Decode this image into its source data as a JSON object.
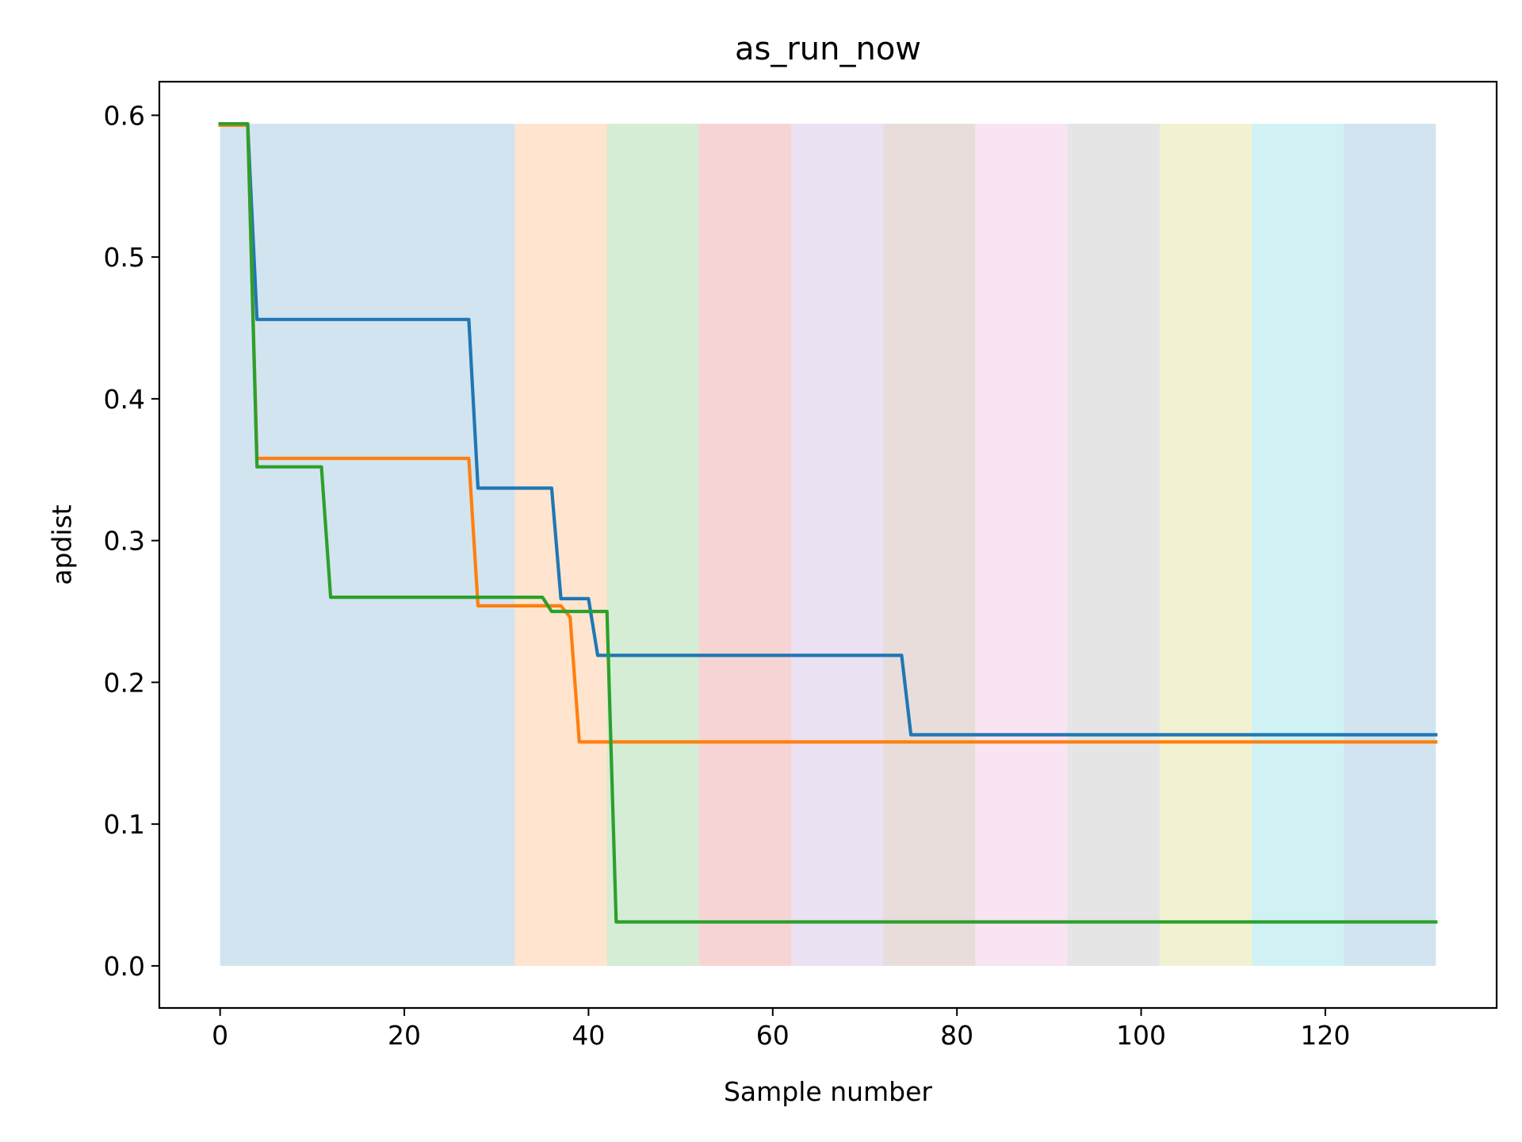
{
  "chart_data": {
    "type": "line",
    "title": "as_run_now",
    "xlabel": "Sample number",
    "ylabel": "apdist",
    "xlim": [
      -6.6,
      138.6
    ],
    "ylim": [
      -0.0297,
      0.6237
    ],
    "xticks": [
      0,
      20,
      40,
      60,
      80,
      100,
      120
    ],
    "yticks": [
      0.0,
      0.1,
      0.2,
      0.3,
      0.4,
      0.5,
      0.6
    ],
    "ytick_labels": [
      "0.0",
      "0.1",
      "0.2",
      "0.3",
      "0.4",
      "0.5",
      "0.6"
    ],
    "grid": false,
    "legend": "none",
    "bands": {
      "ymin": 0.0,
      "ymax": 0.594,
      "opacity": 0.2,
      "intervals": [
        {
          "x0": 0,
          "x1": 32,
          "color": "#1f77b4"
        },
        {
          "x0": 32,
          "x1": 42,
          "color": "#ff7f0e"
        },
        {
          "x0": 42,
          "x1": 52,
          "color": "#2ca02c"
        },
        {
          "x0": 52,
          "x1": 62,
          "color": "#d62728"
        },
        {
          "x0": 62,
          "x1": 72,
          "color": "#9467bd"
        },
        {
          "x0": 72,
          "x1": 82,
          "color": "#8c564b"
        },
        {
          "x0": 82,
          "x1": 92,
          "color": "#e377c2"
        },
        {
          "x0": 92,
          "x1": 102,
          "color": "#7f7f7f"
        },
        {
          "x0": 102,
          "x1": 112,
          "color": "#bcbd22"
        },
        {
          "x0": 112,
          "x1": 122,
          "color": "#17becf"
        },
        {
          "x0": 122,
          "x1": 132,
          "color": "#1f77b4"
        }
      ]
    },
    "series": [
      {
        "color": "#1f77b4",
        "x": [
          0,
          3,
          4,
          27,
          28,
          36,
          37,
          40,
          41,
          74,
          75,
          132
        ],
        "y": [
          0.593,
          0.593,
          0.456,
          0.456,
          0.337,
          0.337,
          0.259,
          0.259,
          0.219,
          0.219,
          0.163,
          0.163
        ]
      },
      {
        "color": "#ff7f0e",
        "x": [
          0,
          3,
          4,
          27,
          28,
          37,
          38,
          39,
          132
        ],
        "y": [
          0.593,
          0.593,
          0.358,
          0.358,
          0.254,
          0.254,
          0.246,
          0.158,
          0.158
        ]
      },
      {
        "color": "#2ca02c",
        "x": [
          0,
          3,
          4,
          11,
          12,
          35,
          36,
          42,
          43,
          132
        ],
        "y": [
          0.594,
          0.594,
          0.352,
          0.352,
          0.26,
          0.26,
          0.25,
          0.25,
          0.031,
          0.031
        ]
      }
    ]
  }
}
